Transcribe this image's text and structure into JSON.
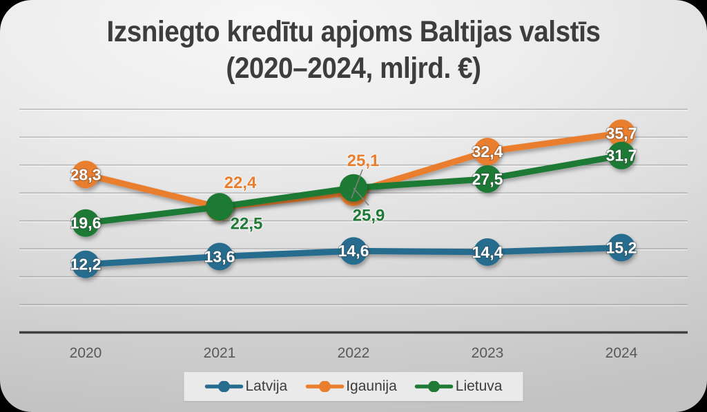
{
  "title": {
    "line1": "Izsniegto kredītu apjoms Baltijas valstīs",
    "line2": "(2020–2024, mljrd. €)"
  },
  "chart_data": {
    "type": "line",
    "x_labels": [
      "2020",
      "2021",
      "2022",
      "2023",
      "2024"
    ],
    "ylim": [
      0,
      42
    ],
    "grid_step": 5,
    "grid_max": 40,
    "grid_visible": true,
    "y_axis_labels_visible": false,
    "series": [
      {
        "name": "Latvija",
        "color": "#266c8e",
        "values": [
          12.2,
          13.6,
          14.6,
          14.4,
          15.2
        ],
        "point_labels": [
          "12,2",
          "13,6",
          "14,6",
          "14,4",
          "15,2"
        ],
        "label_placement": [
          {
            "mode": "inside"
          },
          {
            "mode": "inside"
          },
          {
            "mode": "inside"
          },
          {
            "mode": "inside"
          },
          {
            "mode": "inside"
          }
        ]
      },
      {
        "name": "Igaunija",
        "color": "#e87e2e",
        "values": [
          28.3,
          22.4,
          25.1,
          32.4,
          35.7
        ],
        "point_labels": [
          "28,3",
          "22,4",
          "25,1",
          "32,4",
          "35,7"
        ],
        "label_placement": [
          {
            "mode": "inside"
          },
          {
            "mode": "outside",
            "dx": 30,
            "dy": -36
          },
          {
            "mode": "outside",
            "dx": 14,
            "dy": -46
          },
          {
            "mode": "inside"
          },
          {
            "mode": "inside"
          }
        ]
      },
      {
        "name": "Lietuva",
        "color": "#1e7a34",
        "values": [
          19.6,
          22.5,
          25.9,
          27.5,
          31.7
        ],
        "point_labels": [
          "19,6",
          "22,5",
          "25,9",
          "27,5",
          "31,7"
        ],
        "label_placement": [
          {
            "mode": "inside"
          },
          {
            "mode": "outside",
            "dx": 39,
            "dy": 24
          },
          {
            "mode": "outside",
            "dx": 22,
            "dy": 40
          },
          {
            "mode": "inside"
          },
          {
            "mode": "inside"
          }
        ]
      }
    ],
    "callout_lines": [
      {
        "x1": 525,
        "y1": 246,
        "x2": 509,
        "y2": 288
      },
      {
        "x1": 512,
        "y1": 273,
        "x2": 534,
        "y2": 298
      }
    ],
    "legend": {
      "position": "bottom",
      "entries": [
        "Latvija",
        "Igaunija",
        "Lietuva"
      ]
    }
  },
  "colors": {
    "title": "#3d3d3d",
    "axis": "#3f3f3f",
    "grid": "rgba(130,130,132,0.55)",
    "grid_highlight": "rgba(255,255,255,0.55)",
    "tick_label": "#56585a",
    "legend_bg": "#eaeaea",
    "legend_text": "#3c3c3c",
    "callout": "#7f7f7f"
  }
}
